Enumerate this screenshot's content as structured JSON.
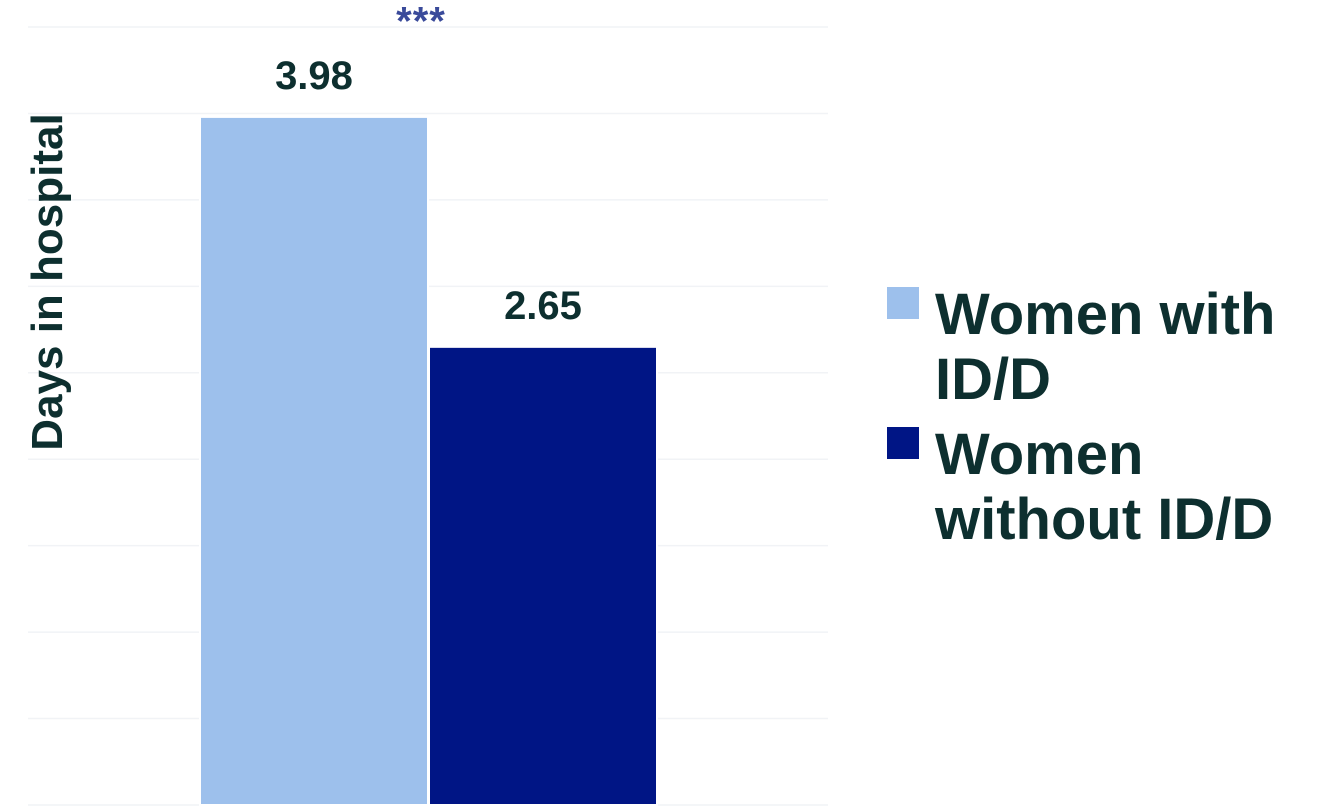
{
  "chart_data": {
    "type": "bar",
    "ylabel": "Days in hospital",
    "ylim": [
      0,
      4.5
    ],
    "grid": true,
    "annotation": "***",
    "legend_position": "right",
    "series": [
      {
        "name": "Women with ID/D",
        "value": 3.98,
        "label": "3.98",
        "color": "#9dc0ec"
      },
      {
        "name": "Women without ID/D",
        "value": 2.65,
        "label": "2.65",
        "color": "#001585"
      }
    ]
  }
}
